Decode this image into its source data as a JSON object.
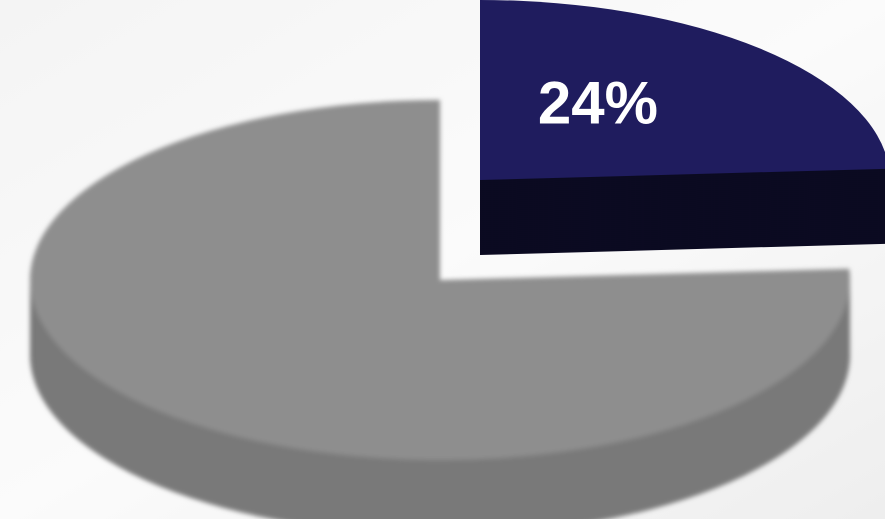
{
  "chart_data": {
    "type": "pie",
    "categories": [
      null,
      null
    ],
    "values": [
      24,
      76
    ],
    "value_labels": [
      "24%",
      null
    ],
    "colors": [
      "#1f1c5e",
      "#8e8e8e"
    ]
  }
}
